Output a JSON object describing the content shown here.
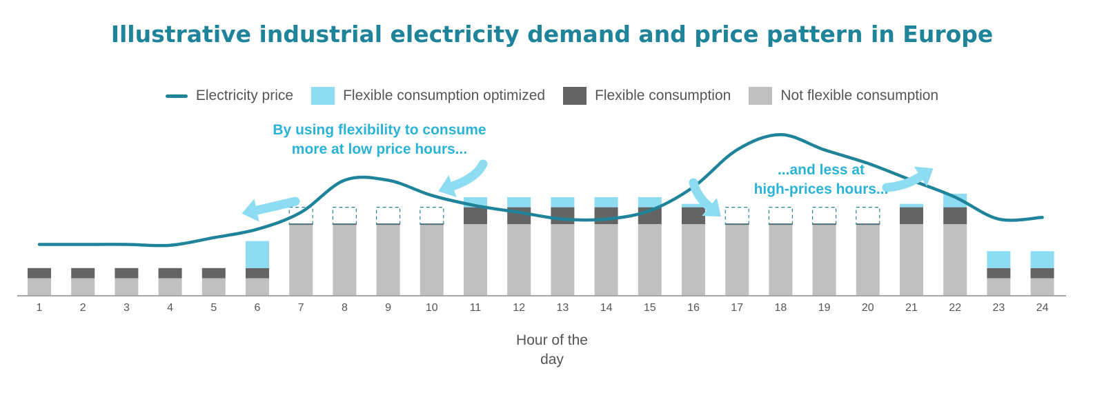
{
  "title": "Illustrative industrial electricity demand and price pattern in Europe",
  "legend": [
    {
      "label": "Electricity price",
      "color": "#1f8499",
      "kind": "line"
    },
    {
      "label": "Flexible consumption optimized",
      "color": "#8ddcf2",
      "kind": "box"
    },
    {
      "label": "Flexible consumption",
      "color": "#646464",
      "kind": "box"
    },
    {
      "label": "Not flexible consumption",
      "color": "#c0c0c0",
      "kind": "box"
    }
  ],
  "annotations": {
    "low": [
      "By using flexibility to consume",
      "more at low price hours..."
    ],
    "high": [
      "...and less at",
      "high-prices hours..."
    ]
  },
  "chart_data": {
    "type": "bar",
    "xlabel_lines": [
      "Hour of the",
      "day"
    ],
    "categories": [
      "1",
      "2",
      "3",
      "4",
      "5",
      "6",
      "7",
      "8",
      "9",
      "10",
      "11",
      "12",
      "13",
      "14",
      "15",
      "16",
      "17",
      "18",
      "19",
      "20",
      "21",
      "22",
      "23",
      "24"
    ],
    "ylim": [
      0,
      10
    ],
    "series": [
      {
        "name": "Not flexible consumption",
        "values": [
          1,
          1,
          1,
          1,
          1,
          1,
          4.2,
          4.2,
          4.2,
          4.2,
          4.2,
          4.2,
          4.2,
          4.2,
          4.2,
          4.2,
          4.2,
          4.2,
          4.2,
          4.2,
          4.2,
          4.2,
          1,
          1
        ]
      },
      {
        "name": "Flexible consumption",
        "values": [
          0.6,
          0.6,
          0.6,
          0.6,
          0.6,
          0.6,
          0,
          0,
          0,
          0,
          1,
          1,
          1,
          1,
          1,
          1,
          0,
          0,
          0,
          0,
          1,
          1,
          0.6,
          0.6
        ]
      },
      {
        "name": "Flexible consumption optimized",
        "values": [
          0,
          0,
          0,
          0,
          0,
          1.6,
          0,
          0,
          0,
          0,
          0.6,
          0.6,
          0.6,
          0.6,
          0.6,
          0.2,
          0,
          0,
          0,
          0,
          0.2,
          0.8,
          1,
          1
        ]
      }
    ],
    "dashed_flexible_hours": [
      7,
      8,
      9,
      10,
      17,
      18,
      19,
      20
    ],
    "price": {
      "name": "Electricity price",
      "x": [
        1,
        2,
        3,
        4,
        5,
        6,
        7,
        8,
        9,
        10,
        11,
        12,
        13,
        14,
        15,
        16,
        17,
        18,
        19,
        20,
        21,
        22,
        23,
        24
      ],
      "values": [
        3.0,
        3.0,
        3.0,
        2.95,
        3.4,
        3.9,
        4.9,
        6.8,
        6.8,
        5.9,
        5.3,
        4.9,
        4.5,
        4.5,
        5.0,
        6.4,
        8.6,
        9.5,
        8.6,
        7.8,
        6.8,
        5.8,
        4.5,
        4.6
      ]
    },
    "colors": {
      "price": "#1f8499",
      "optimized": "#8ddcf2",
      "flexible": "#646464",
      "notflexible": "#c0c0c0",
      "arrow": "#8ddcf2",
      "axis": "#888888"
    }
  }
}
